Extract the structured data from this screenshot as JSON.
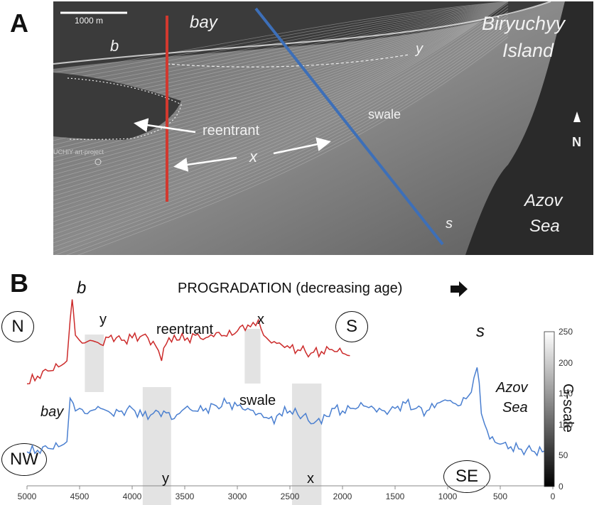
{
  "panel_a": {
    "letter": "A",
    "scale_bar": "1000 m",
    "labels": {
      "bay": "bay",
      "b": "b",
      "y": "y",
      "island": [
        "Biryuchyy",
        "Island"
      ],
      "swale": "swale",
      "reentrant": "reentrant",
      "x": "x",
      "north": "N",
      "sea": [
        "Azov",
        "Sea"
      ],
      "s": "s",
      "watermark": "UCHIY art-project"
    },
    "colors": {
      "red_transect": "#d2392f",
      "blue_transect": "#3d6fb8"
    }
  },
  "panel_b": {
    "letter": "B",
    "title": "PROGRADATION (decreasing age)",
    "arrow_icon": "right-arrow",
    "labels": {
      "b": "b",
      "s": "s",
      "N": "N",
      "S": "S",
      "NW": "NW",
      "SE": "SE",
      "y_top": "y",
      "x_top": "x",
      "y_bottom": "y",
      "x_bottom": "x",
      "reentrant": "reentrant",
      "swale": "swale",
      "bay": "bay",
      "sea": [
        "Azov",
        "Sea"
      ]
    },
    "colorbar": {
      "label": "G-scale",
      "ticks": [
        "250",
        "200",
        "150",
        "100",
        "50",
        "0"
      ]
    }
  },
  "chart_data": {
    "type": "line",
    "xlim": [
      5000,
      0
    ],
    "x_ticks": [
      "5000",
      "4500",
      "4000",
      "3500",
      "3000",
      "2500",
      "2000",
      "1500",
      "1000",
      "500",
      "0"
    ],
    "series": [
      {
        "color": "#cc2a2a",
        "x": [
          5000,
          4900,
          4800,
          4700,
          4620,
          4590,
          4570,
          4560,
          4540,
          4500,
          4450,
          4400,
          4300,
          4200,
          4100,
          4000,
          3900,
          3800,
          3750,
          3720,
          3700,
          3650,
          3600,
          3500,
          3400,
          3300,
          3200,
          3100,
          3000,
          2900,
          2850,
          2800,
          2750,
          2700,
          2600,
          2500,
          2400,
          2300,
          2200,
          2100,
          2000,
          1930
        ],
        "y": [
          55,
          70,
          80,
          88,
          100,
          180,
          220,
          200,
          150,
          140,
          135,
          140,
          132,
          150,
          140,
          145,
          150,
          138,
          120,
          100,
          125,
          145,
          150,
          140,
          150,
          145,
          155,
          148,
          158,
          170,
          175,
          180,
          150,
          140,
          135,
          125,
          120,
          115,
          118,
          122,
          115,
          110
        ]
      },
      {
        "color": "#4a7fd0",
        "x": [
          5000,
          4900,
          4800,
          4700,
          4620,
          4590,
          4560,
          4540,
          4500,
          4450,
          4400,
          4300,
          4200,
          4100,
          4000,
          3900,
          3800,
          3700,
          3600,
          3500,
          3400,
          3300,
          3200,
          3100,
          3000,
          2900,
          2800,
          2700,
          2650,
          2600,
          2500,
          2450,
          2400,
          2350,
          2300,
          2250,
          2200,
          2100,
          2000,
          1900,
          1800,
          1700,
          1600,
          1500,
          1400,
          1300,
          1200,
          1100,
          1000,
          900,
          800,
          750,
          720,
          700,
          680,
          650,
          600,
          500,
          400,
          300,
          200,
          100,
          0
        ],
        "y": [
          15,
          18,
          22,
          25,
          35,
          120,
          110,
          95,
          100,
          90,
          95,
          100,
          90,
          95,
          100,
          85,
          90,
          95,
          80,
          100,
          95,
          100,
          105,
          110,
          105,
          100,
          90,
          80,
          70,
          90,
          95,
          100,
          80,
          90,
          70,
          75,
          70,
          100,
          95,
          100,
          105,
          100,
          95,
          100,
          110,
          100,
          95,
          110,
          115,
          105,
          125,
          160,
          180,
          150,
          90,
          70,
          40,
          30,
          25,
          20,
          17,
          15,
          12
        ]
      }
    ]
  }
}
